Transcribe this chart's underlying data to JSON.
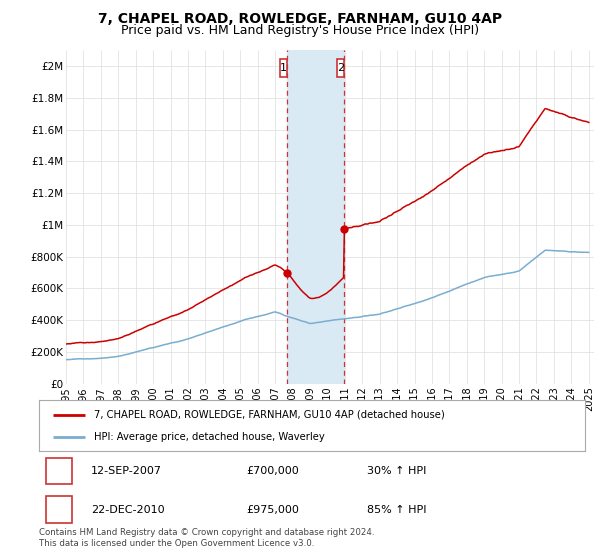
{
  "title": "7, CHAPEL ROAD, ROWLEDGE, FARNHAM, GU10 4AP",
  "subtitle": "Price paid vs. HM Land Registry's House Price Index (HPI)",
  "ylabel_ticks": [
    "£0",
    "£200K",
    "£400K",
    "£600K",
    "£800K",
    "£1M",
    "£1.2M",
    "£1.4M",
    "£1.6M",
    "£1.8M",
    "£2M"
  ],
  "ytick_values": [
    0,
    200000,
    400000,
    600000,
    800000,
    1000000,
    1200000,
    1400000,
    1600000,
    1800000,
    2000000
  ],
  "ylim": [
    0,
    2100000
  ],
  "x_start_year": 1995,
  "x_end_year": 2025,
  "purchase1_date": 2007.71,
  "purchase1_price": 700000,
  "purchase1_label": "1",
  "purchase2_date": 2010.97,
  "purchase2_price": 975000,
  "purchase2_label": "2",
  "line1_color": "#cc0000",
  "line2_color": "#7aadcf",
  "highlight_color": "#daeaf5",
  "dashed_color": "#cc3333",
  "box_edge_color": "#cc3333",
  "legend_line1": "7, CHAPEL ROAD, ROWLEDGE, FARNHAM, GU10 4AP (detached house)",
  "legend_line2": "HPI: Average price, detached house, Waverley",
  "table_row1": [
    "1",
    "12-SEP-2007",
    "£700,000",
    "30% ↑ HPI"
  ],
  "table_row2": [
    "2",
    "22-DEC-2010",
    "£975,000",
    "85% ↑ HPI"
  ],
  "footer": "Contains HM Land Registry data © Crown copyright and database right 2024.\nThis data is licensed under the Open Government Licence v3.0.",
  "title_fontsize": 10,
  "subtitle_fontsize": 9,
  "tick_fontsize": 7.5,
  "label_fontsize": 8,
  "background_color": "#ffffff"
}
